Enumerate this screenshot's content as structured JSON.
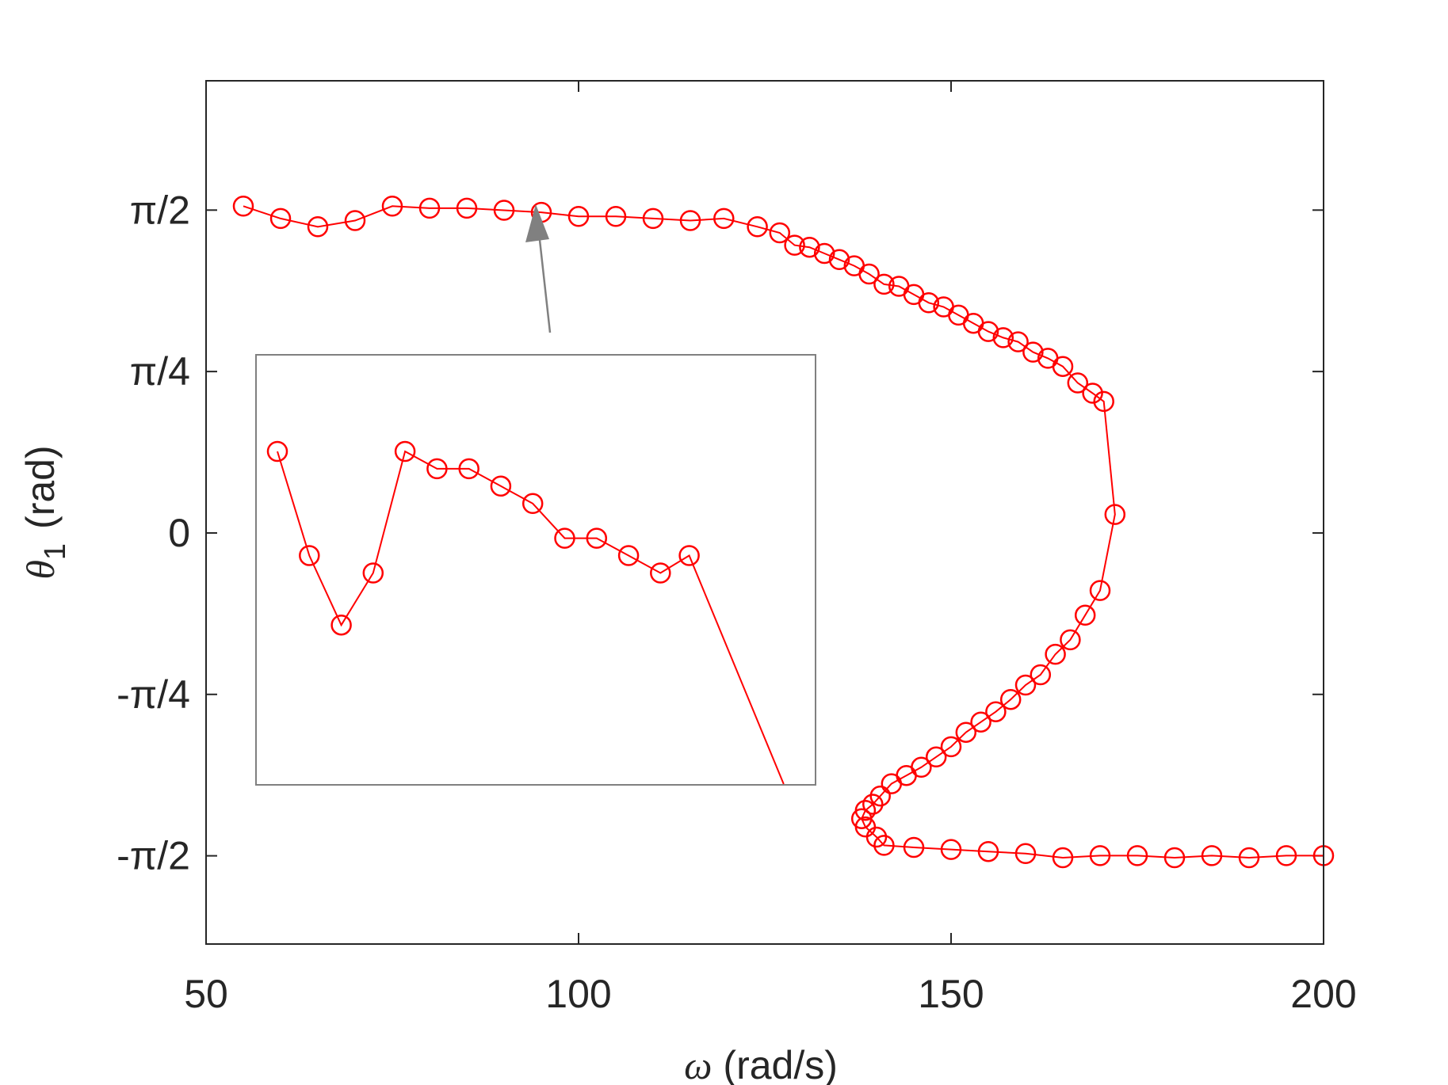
{
  "chart_data": {
    "type": "line",
    "title": "",
    "xlabel": {
      "symbol": "ω",
      "unit": "(rad/s)"
    },
    "ylabel": {
      "symbol": "θ",
      "subscript": "1",
      "unit": "(rad)"
    },
    "xlim": [
      50,
      200
    ],
    "ylim": [
      -2.0,
      2.2
    ],
    "xticks": [
      {
        "value": 50,
        "label": "50"
      },
      {
        "value": 100,
        "label": "100"
      },
      {
        "value": 150,
        "label": "150"
      },
      {
        "value": 200,
        "label": "200"
      }
    ],
    "yticks": [
      {
        "value": 1.5708,
        "label": "π/2"
      },
      {
        "value": 0.7854,
        "label": "π/4"
      },
      {
        "value": 0,
        "label": "0"
      },
      {
        "value": -0.7854,
        "label": "-π/4"
      },
      {
        "value": -1.5708,
        "label": "-π/2"
      }
    ],
    "grid": false,
    "box": true,
    "colors": {
      "series": "#ff0000",
      "axes": "#262626",
      "inset": "#808080",
      "arrow": "#808080"
    },
    "series": [
      {
        "marker": "circle",
        "x": [
          55,
          60,
          65,
          70,
          75,
          80,
          85,
          90,
          95,
          100,
          105,
          110,
          115,
          119.5,
          124,
          127,
          129,
          131,
          133,
          135,
          137,
          139,
          141,
          143,
          145,
          147,
          149,
          151,
          153,
          155,
          157,
          159,
          161,
          163,
          165,
          167,
          169,
          170.5,
          172,
          170,
          168,
          166,
          164,
          162,
          160,
          158,
          156,
          154,
          152,
          150,
          148,
          146,
          144,
          142,
          140.5,
          139.5,
          138.5,
          138,
          138.5,
          140,
          141,
          145,
          150,
          155,
          160,
          165,
          170,
          175,
          180,
          185,
          190,
          195,
          200
        ],
        "y": [
          1.59,
          1.53,
          1.49,
          1.52,
          1.59,
          1.58,
          1.58,
          1.57,
          1.56,
          1.54,
          1.54,
          1.53,
          1.52,
          1.53,
          1.49,
          1.46,
          1.4,
          1.39,
          1.36,
          1.33,
          1.3,
          1.26,
          1.21,
          1.2,
          1.16,
          1.12,
          1.1,
          1.06,
          1.02,
          0.98,
          0.95,
          0.93,
          0.88,
          0.85,
          0.81,
          0.73,
          0.68,
          0.64,
          0.09,
          -0.28,
          -0.4,
          -0.52,
          -0.59,
          -0.69,
          -0.74,
          -0.81,
          -0.87,
          -0.92,
          -0.97,
          -1.04,
          -1.09,
          -1.14,
          -1.18,
          -1.22,
          -1.28,
          -1.32,
          -1.35,
          -1.39,
          -1.43,
          -1.48,
          -1.52,
          -1.53,
          -1.54,
          -1.55,
          -1.56,
          -1.58,
          -1.57,
          -1.57,
          -1.58,
          -1.57,
          -1.58,
          -1.57,
          -1.57
        ]
      }
    ],
    "inset": {
      "type": "line",
      "zoom_of": "flat top branch (ω 55–124)",
      "marker": "circle",
      "x": [
        55,
        60,
        65,
        70,
        75,
        80,
        85,
        90,
        95,
        100,
        105,
        110,
        115,
        119.5,
        124,
        127
      ],
      "y": [
        1.59,
        1.53,
        1.49,
        1.52,
        1.59,
        1.58,
        1.58,
        1.57,
        1.56,
        1.54,
        1.54,
        1.53,
        1.52,
        1.53,
        1.49,
        1.46
      ]
    }
  }
}
